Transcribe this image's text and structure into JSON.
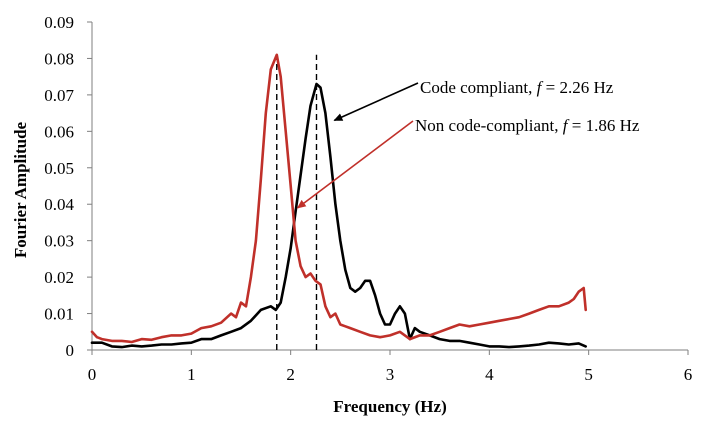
{
  "chart_data": {
    "type": "line",
    "xlabel": "Frequency (Hz)",
    "ylabel": "Fourier Amplitude",
    "xlim": [
      0,
      6
    ],
    "ylim": [
      0,
      0.09
    ],
    "x_ticks": [
      "0",
      "1",
      "2",
      "3",
      "4",
      "5",
      "6"
    ],
    "y_ticks": [
      "0",
      "0.01",
      "0.02",
      "0.03",
      "0.04",
      "0.05",
      "0.06",
      "0.07",
      "0.08",
      "0.09"
    ],
    "grid": false,
    "legend": "none",
    "series": [
      {
        "color": "#000000",
        "x": [
          0.0,
          0.1,
          0.2,
          0.3,
          0.4,
          0.5,
          0.6,
          0.7,
          0.8,
          0.9,
          1.0,
          1.1,
          1.2,
          1.3,
          1.4,
          1.5,
          1.6,
          1.7,
          1.8,
          1.85,
          1.9,
          1.95,
          2.0,
          2.05,
          2.1,
          2.15,
          2.2,
          2.26,
          2.3,
          2.35,
          2.4,
          2.45,
          2.5,
          2.55,
          2.6,
          2.65,
          2.7,
          2.75,
          2.8,
          2.85,
          2.9,
          2.95,
          3.0,
          3.05,
          3.1,
          3.15,
          3.2,
          3.25,
          3.3,
          3.4,
          3.5,
          3.6,
          3.7,
          3.8,
          3.9,
          4.0,
          4.1,
          4.2,
          4.3,
          4.4,
          4.5,
          4.6,
          4.7,
          4.8,
          4.9,
          4.97
        ],
        "y": [
          0.002,
          0.002,
          0.001,
          0.0008,
          0.0012,
          0.001,
          0.0012,
          0.0015,
          0.0015,
          0.0018,
          0.002,
          0.003,
          0.003,
          0.004,
          0.005,
          0.006,
          0.008,
          0.011,
          0.012,
          0.011,
          0.013,
          0.02,
          0.028,
          0.038,
          0.048,
          0.058,
          0.067,
          0.073,
          0.072,
          0.065,
          0.053,
          0.04,
          0.03,
          0.022,
          0.017,
          0.016,
          0.017,
          0.019,
          0.019,
          0.015,
          0.01,
          0.007,
          0.007,
          0.01,
          0.012,
          0.01,
          0.003,
          0.006,
          0.005,
          0.004,
          0.003,
          0.0025,
          0.0025,
          0.002,
          0.0015,
          0.001,
          0.001,
          0.0008,
          0.001,
          0.0012,
          0.0015,
          0.002,
          0.0018,
          0.0015,
          0.0018,
          0.001
        ]
      },
      {
        "color": "#c0302a",
        "x": [
          0.0,
          0.05,
          0.1,
          0.2,
          0.3,
          0.4,
          0.5,
          0.6,
          0.7,
          0.8,
          0.9,
          1.0,
          1.1,
          1.2,
          1.3,
          1.4,
          1.45,
          1.5,
          1.55,
          1.6,
          1.65,
          1.7,
          1.75,
          1.8,
          1.86,
          1.9,
          1.95,
          2.0,
          2.05,
          2.1,
          2.15,
          2.2,
          2.25,
          2.3,
          2.35,
          2.4,
          2.45,
          2.5,
          2.55,
          2.6,
          2.7,
          2.8,
          2.9,
          3.0,
          3.1,
          3.2,
          3.3,
          3.4,
          3.5,
          3.6,
          3.7,
          3.8,
          3.9,
          4.0,
          4.1,
          4.2,
          4.3,
          4.4,
          4.5,
          4.6,
          4.7,
          4.8,
          4.85,
          4.9,
          4.95,
          4.97
        ],
        "y": [
          0.005,
          0.0035,
          0.003,
          0.0025,
          0.0025,
          0.0022,
          0.003,
          0.0028,
          0.0035,
          0.004,
          0.004,
          0.0045,
          0.006,
          0.0065,
          0.0075,
          0.01,
          0.009,
          0.013,
          0.012,
          0.02,
          0.03,
          0.047,
          0.065,
          0.077,
          0.081,
          0.075,
          0.06,
          0.045,
          0.03,
          0.023,
          0.02,
          0.021,
          0.019,
          0.018,
          0.012,
          0.009,
          0.01,
          0.007,
          0.0065,
          0.006,
          0.005,
          0.004,
          0.0035,
          0.004,
          0.005,
          0.003,
          0.004,
          0.004,
          0.005,
          0.006,
          0.007,
          0.0065,
          0.007,
          0.0075,
          0.008,
          0.0085,
          0.009,
          0.01,
          0.011,
          0.012,
          0.012,
          0.013,
          0.014,
          0.016,
          0.017,
          0.011
        ]
      }
    ],
    "reference_lines_x": [
      1.86,
      2.26
    ],
    "annotations": [
      {
        "label": "Code compliant, ",
        "italic": "f",
        "value": " = 2.26 Hz",
        "arrow_color": "#000000",
        "target": {
          "x": 2.44,
          "y": 0.063
        }
      },
      {
        "label": "Non code-compliant, ",
        "italic": "f",
        "value": " = 1.86 Hz",
        "arrow_color": "#c0302a",
        "target": {
          "x": 2.07,
          "y": 0.039
        }
      }
    ]
  }
}
